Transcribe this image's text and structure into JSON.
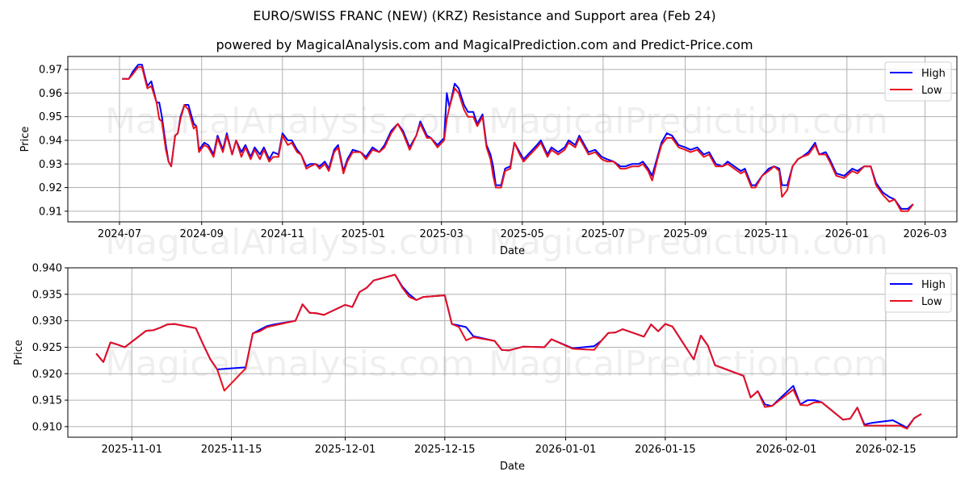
{
  "header": {
    "title": "EURO/SWISS FRANC (NEW) (KRZ) Resistance and Support area (Feb 24)",
    "subtitle": "powered by MagicalAnalysis.com and MagicalPrediction.com and Predict-Price.com"
  },
  "watermarks": [
    "MagicalAnalysis.com",
    "MagicalPrediction.com"
  ],
  "colors": {
    "high": "#0000ff",
    "low": "#e8101e",
    "grid": "#b0b0b0"
  },
  "chart_data": [
    {
      "type": "line",
      "title": "",
      "xlabel": "Date",
      "ylabel": "Price",
      "ylim": [
        0.9055,
        0.9755
      ],
      "xlim": [
        "2024-05-23",
        "2026-03-25"
      ],
      "grid": true,
      "legend_position": "upper right",
      "x_ticks": [
        "2024-07",
        "2024-09",
        "2024-11",
        "2025-01",
        "2025-03",
        "2025-05",
        "2025-07",
        "2025-09",
        "2025-11",
        "2026-01",
        "2026-03"
      ],
      "y_ticks": [
        "0.91",
        "0.92",
        "0.93",
        "0.94",
        "0.95",
        "0.96",
        "0.97"
      ],
      "legend": [
        "High",
        "Low"
      ],
      "x": [
        "2024-07-03",
        "2024-07-08",
        "2024-07-11",
        "2024-07-15",
        "2024-07-18",
        "2024-07-22",
        "2024-07-25",
        "2024-07-29",
        "2024-07-31",
        "2024-08-02",
        "2024-08-05",
        "2024-08-07",
        "2024-08-09",
        "2024-08-12",
        "2024-08-14",
        "2024-08-16",
        "2024-08-19",
        "2024-08-22",
        "2024-08-26",
        "2024-08-28",
        "2024-08-30",
        "2024-09-03",
        "2024-09-06",
        "2024-09-10",
        "2024-09-13",
        "2024-09-17",
        "2024-09-20",
        "2024-09-24",
        "2024-09-27",
        "2024-10-01",
        "2024-10-04",
        "2024-10-08",
        "2024-10-11",
        "2024-10-15",
        "2024-10-18",
        "2024-10-22",
        "2024-10-25",
        "2024-10-29",
        "2024-11-01",
        "2024-11-05",
        "2024-11-08",
        "2024-11-12",
        "2024-11-15",
        "2024-11-19",
        "2024-11-22",
        "2024-11-26",
        "2024-11-29",
        "2024-12-03",
        "2024-12-06",
        "2024-12-10",
        "2024-12-13",
        "2024-12-17",
        "2024-12-20",
        "2024-12-24",
        "2024-12-30",
        "2025-01-03",
        "2025-01-08",
        "2025-01-13",
        "2025-01-17",
        "2025-01-22",
        "2025-01-27",
        "2025-01-31",
        "2025-02-05",
        "2025-02-10",
        "2025-02-13",
        "2025-02-18",
        "2025-02-21",
        "2025-02-26",
        "2025-03-03",
        "2025-03-05",
        "2025-03-07",
        "2025-03-11",
        "2025-03-14",
        "2025-03-18",
        "2025-03-21",
        "2025-03-25",
        "2025-03-28",
        "2025-04-01",
        "2025-04-04",
        "2025-04-07",
        "2025-04-09",
        "2025-04-11",
        "2025-04-15",
        "2025-04-18",
        "2025-04-22",
        "2025-04-25",
        "2025-04-29",
        "2025-05-02",
        "2025-05-07",
        "2025-05-12",
        "2025-05-15",
        "2025-05-20",
        "2025-05-23",
        "2025-05-28",
        "2025-06-02",
        "2025-06-05",
        "2025-06-10",
        "2025-06-13",
        "2025-06-17",
        "2025-06-20",
        "2025-06-25",
        "2025-06-30",
        "2025-07-04",
        "2025-07-09",
        "2025-07-14",
        "2025-07-18",
        "2025-07-23",
        "2025-07-28",
        "2025-07-31",
        "2025-08-04",
        "2025-08-07",
        "2025-08-11",
        "2025-08-14",
        "2025-08-18",
        "2025-08-22",
        "2025-08-27",
        "2025-09-01",
        "2025-09-05",
        "2025-09-10",
        "2025-09-15",
        "2025-09-19",
        "2025-09-24",
        "2025-09-29",
        "2025-10-03",
        "2025-10-08",
        "2025-10-13",
        "2025-10-16",
        "2025-10-21",
        "2025-10-24",
        "2025-10-29",
        "2025-11-03",
        "2025-11-07",
        "2025-11-11",
        "2025-11-13",
        "2025-11-17",
        "2025-11-21",
        "2025-11-25",
        "2025-11-28",
        "2025-12-03",
        "2025-12-08",
        "2025-12-11",
        "2025-12-16",
        "2025-12-19",
        "2025-12-24",
        "2025-12-30",
        "2026-01-05",
        "2026-01-09",
        "2026-01-14",
        "2026-01-19",
        "2026-01-23",
        "2026-01-28",
        "2026-02-02",
        "2026-02-06",
        "2026-02-11",
        "2026-02-16",
        "2026-02-20"
      ],
      "series": [
        {
          "name": "High",
          "values": [
            0.966,
            0.966,
            0.969,
            0.972,
            0.972,
            0.963,
            0.965,
            0.956,
            0.956,
            0.95,
            0.938,
            0.931,
            0.929,
            0.942,
            0.943,
            0.95,
            0.955,
            0.955,
            0.947,
            0.946,
            0.936,
            0.939,
            0.938,
            0.934,
            0.942,
            0.936,
            0.943,
            0.934,
            0.94,
            0.935,
            0.938,
            0.933,
            0.937,
            0.934,
            0.937,
            0.932,
            0.935,
            0.934,
            0.943,
            0.94,
            0.94,
            0.936,
            0.934,
            0.929,
            0.93,
            0.93,
            0.929,
            0.931,
            0.928,
            0.936,
            0.938,
            0.927,
            0.932,
            0.936,
            0.935,
            0.933,
            0.937,
            0.935,
            0.938,
            0.944,
            0.947,
            0.944,
            0.937,
            0.942,
            0.948,
            0.942,
            0.941,
            0.938,
            0.941,
            0.96,
            0.954,
            0.964,
            0.962,
            0.955,
            0.952,
            0.952,
            0.947,
            0.951,
            0.938,
            0.934,
            0.929,
            0.921,
            0.921,
            0.928,
            0.929,
            0.939,
            0.935,
            0.932,
            0.935,
            0.938,
            0.94,
            0.934,
            0.937,
            0.935,
            0.937,
            0.94,
            0.938,
            0.942,
            0.938,
            0.935,
            0.936,
            0.933,
            0.932,
            0.931,
            0.929,
            0.929,
            0.93,
            0.93,
            0.931,
            0.928,
            0.925,
            0.933,
            0.939,
            0.943,
            0.942,
            0.938,
            0.937,
            0.936,
            0.937,
            0.934,
            0.935,
            0.93,
            0.929,
            0.931,
            0.929,
            0.927,
            0.928,
            0.921,
            0.921,
            0.925,
            0.928,
            0.929,
            0.928,
            0.921,
            0.921,
            0.929,
            0.932,
            0.933,
            0.935,
            0.939,
            0.934,
            0.935,
            0.932,
            0.926,
            0.925,
            0.928,
            0.927,
            0.929,
            0.929,
            0.922,
            0.918,
            0.916,
            0.915,
            0.911,
            0.911,
            0.913
          ]
        },
        {
          "name": "Low",
          "values": [
            0.966,
            0.966,
            0.968,
            0.971,
            0.971,
            0.962,
            0.963,
            0.956,
            0.949,
            0.948,
            0.936,
            0.931,
            0.929,
            0.942,
            0.943,
            0.949,
            0.955,
            0.953,
            0.945,
            0.946,
            0.935,
            0.938,
            0.937,
            0.933,
            0.941,
            0.935,
            0.942,
            0.934,
            0.94,
            0.933,
            0.937,
            0.932,
            0.936,
            0.932,
            0.936,
            0.931,
            0.933,
            0.933,
            0.942,
            0.938,
            0.939,
            0.935,
            0.934,
            0.928,
            0.929,
            0.93,
            0.928,
            0.93,
            0.927,
            0.935,
            0.937,
            0.926,
            0.931,
            0.935,
            0.935,
            0.932,
            0.936,
            0.935,
            0.937,
            0.943,
            0.947,
            0.943,
            0.936,
            0.942,
            0.947,
            0.941,
            0.941,
            0.937,
            0.94,
            0.949,
            0.954,
            0.962,
            0.96,
            0.953,
            0.95,
            0.95,
            0.946,
            0.95,
            0.937,
            0.932,
            0.925,
            0.92,
            0.92,
            0.927,
            0.928,
            0.939,
            0.934,
            0.931,
            0.934,
            0.937,
            0.939,
            0.933,
            0.936,
            0.934,
            0.936,
            0.939,
            0.937,
            0.941,
            0.937,
            0.934,
            0.935,
            0.932,
            0.931,
            0.931,
            0.928,
            0.928,
            0.929,
            0.929,
            0.93,
            0.927,
            0.923,
            0.932,
            0.938,
            0.941,
            0.941,
            0.937,
            0.936,
            0.935,
            0.936,
            0.933,
            0.934,
            0.929,
            0.929,
            0.93,
            0.928,
            0.926,
            0.927,
            0.92,
            0.92,
            0.925,
            0.927,
            0.929,
            0.927,
            0.916,
            0.919,
            0.929,
            0.932,
            0.933,
            0.934,
            0.938,
            0.934,
            0.934,
            0.931,
            0.925,
            0.924,
            0.927,
            0.926,
            0.929,
            0.929,
            0.921,
            0.917,
            0.914,
            0.915,
            0.91,
            0.91,
            0.913
          ]
        }
      ]
    },
    {
      "type": "line",
      "title": "",
      "xlabel": "Date",
      "ylabel": "Price",
      "ylim": [
        0.908,
        0.94
      ],
      "xlim": [
        "2025-10-23",
        "2026-02-25"
      ],
      "grid": true,
      "legend_position": "upper right",
      "x_ticks": [
        "2025-11-01",
        "2025-11-15",
        "2025-12-01",
        "2025-12-15",
        "2026-01-01",
        "2026-01-15",
        "2026-02-01",
        "2026-02-15"
      ],
      "y_ticks": [
        "0.910",
        "0.915",
        "0.920",
        "0.925",
        "0.930",
        "0.935",
        "0.940"
      ],
      "legend": [
        "High",
        "Low"
      ],
      "x": [
        "2025-10-27",
        "2025-10-28",
        "2025-10-29",
        "2025-10-30",
        "2025-10-31",
        "2025-11-03",
        "2025-11-04",
        "2025-11-05",
        "2025-11-06",
        "2025-11-07",
        "2025-11-10",
        "2025-11-11",
        "2025-11-12",
        "2025-11-13",
        "2025-11-14",
        "2025-11-17",
        "2025-11-18",
        "2025-11-19",
        "2025-11-20",
        "2025-11-21",
        "2025-11-24",
        "2025-11-25",
        "2025-11-26",
        "2025-11-27",
        "2025-11-28",
        "2025-12-01",
        "2025-12-02",
        "2025-12-03",
        "2025-12-04",
        "2025-12-05",
        "2025-12-08",
        "2025-12-09",
        "2025-12-10",
        "2025-12-11",
        "2025-12-12",
        "2025-12-15",
        "2025-12-16",
        "2025-12-17",
        "2025-12-18",
        "2025-12-19",
        "2025-12-22",
        "2025-12-23",
        "2025-12-24",
        "2025-12-26",
        "2025-12-29",
        "2025-12-30",
        "2026-01-02",
        "2026-01-05",
        "2026-01-06",
        "2026-01-07",
        "2026-01-08",
        "2026-01-09",
        "2026-01-12",
        "2026-01-13",
        "2026-01-14",
        "2026-01-15",
        "2026-01-16",
        "2026-01-19",
        "2026-01-20",
        "2026-01-21",
        "2026-01-22",
        "2026-01-23",
        "2026-01-26",
        "2026-01-27",
        "2026-01-28",
        "2026-01-29",
        "2026-01-30",
        "2026-02-02",
        "2026-02-03",
        "2026-02-04",
        "2026-02-05",
        "2026-02-06",
        "2026-02-09",
        "2026-02-10",
        "2026-02-11",
        "2026-02-12",
        "2026-02-13",
        "2026-02-16",
        "2026-02-17",
        "2026-02-18",
        "2026-02-19",
        "2026-02-20"
      ],
      "series": [
        {
          "name": "High",
          "values": [
            0.9238,
            0.9222,
            0.9259,
            0.9255,
            0.925,
            0.9281,
            0.9282,
            0.9287,
            0.9293,
            0.9294,
            0.9286,
            0.9256,
            0.9228,
            0.9208,
            0.9209,
            0.9212,
            0.9276,
            0.9283,
            0.929,
            0.9293,
            0.93,
            0.9331,
            0.9315,
            0.9314,
            0.9311,
            0.933,
            0.9326,
            0.9354,
            0.9362,
            0.9376,
            0.9387,
            0.9365,
            0.935,
            0.9339,
            0.9345,
            0.9348,
            0.9294,
            0.9291,
            0.9288,
            0.9271,
            0.9262,
            0.9245,
            0.9244,
            0.9251,
            0.925,
            0.9265,
            0.9248,
            0.9252,
            0.9262,
            0.9277,
            0.9278,
            0.9284,
            0.927,
            0.9293,
            0.928,
            0.9294,
            0.9289,
            0.9227,
            0.9272,
            0.9253,
            0.9216,
            0.9211,
            0.9196,
            0.9155,
            0.9167,
            0.9142,
            0.9139,
            0.9177,
            0.9142,
            0.915,
            0.915,
            0.9146,
            0.9113,
            0.9115,
            0.9136,
            0.9104,
            0.9107,
            0.9112,
            0.9105,
            0.9098,
            0.9116,
            0.9124
          ]
        },
        {
          "name": "Low",
          "values": [
            0.9238,
            0.9222,
            0.9259,
            0.9255,
            0.925,
            0.9281,
            0.9282,
            0.9287,
            0.9293,
            0.9294,
            0.9286,
            0.9256,
            0.9228,
            0.9208,
            0.9168,
            0.921,
            0.9276,
            0.928,
            0.9288,
            0.9291,
            0.93,
            0.9331,
            0.9315,
            0.9314,
            0.9311,
            0.933,
            0.9326,
            0.9354,
            0.9362,
            0.9376,
            0.9387,
            0.9363,
            0.9345,
            0.9339,
            0.9345,
            0.9348,
            0.9294,
            0.9288,
            0.9263,
            0.9269,
            0.9262,
            0.9245,
            0.9244,
            0.9251,
            0.925,
            0.9265,
            0.9247,
            0.9245,
            0.9262,
            0.9277,
            0.9278,
            0.9284,
            0.927,
            0.9293,
            0.928,
            0.9294,
            0.9289,
            0.9227,
            0.9272,
            0.9253,
            0.9216,
            0.9211,
            0.9196,
            0.9155,
            0.9167,
            0.9137,
            0.9139,
            0.917,
            0.9141,
            0.914,
            0.9146,
            0.9146,
            0.9113,
            0.9115,
            0.9136,
            0.9102,
            0.9102,
            0.9102,
            0.9102,
            0.9096,
            0.9116,
            0.9124
          ]
        }
      ]
    }
  ]
}
